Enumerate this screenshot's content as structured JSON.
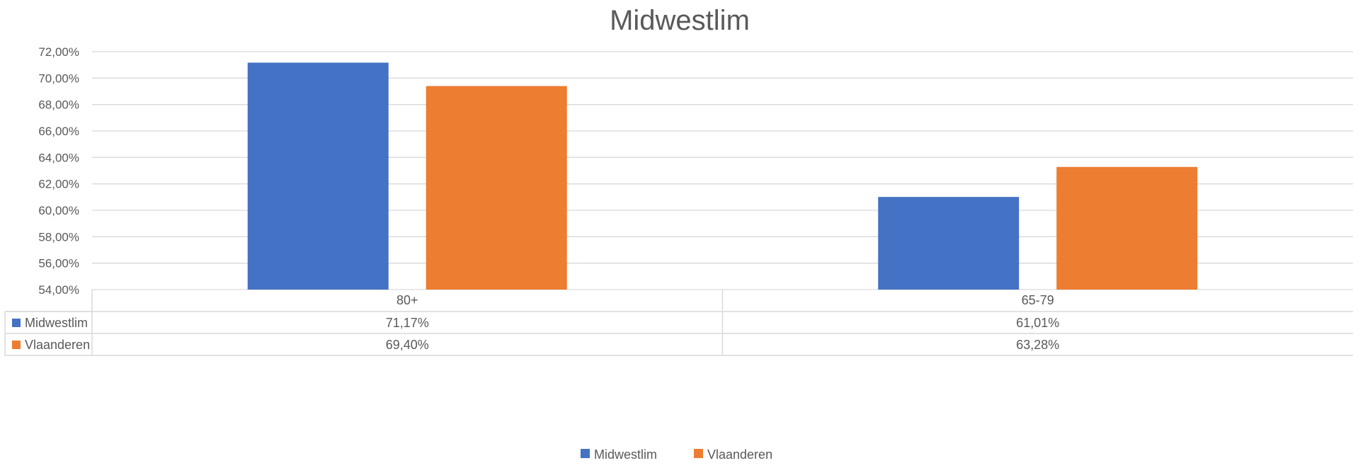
{
  "chart_data": {
    "type": "bar",
    "title": "Midwestlim",
    "categories": [
      "80+",
      "65-79"
    ],
    "series": [
      {
        "name": "Midwestlim",
        "color": "#4472C4",
        "values": [
          71.17,
          61.01
        ],
        "labels": [
          "71,17%",
          "61,01%"
        ]
      },
      {
        "name": "Vlaanderen",
        "color": "#ED7D31",
        "values": [
          69.4,
          63.28
        ],
        "labels": [
          "69,40%",
          "63,28%"
        ]
      }
    ],
    "ylim": [
      54,
      72
    ],
    "yticks": [
      54,
      56,
      58,
      60,
      62,
      64,
      66,
      68,
      70,
      72
    ],
    "ytick_labels": [
      "54,00%",
      "56,00%",
      "58,00%",
      "60,00%",
      "62,00%",
      "64,00%",
      "66,00%",
      "68,00%",
      "70,00%",
      "72,00%"
    ],
    "grid": true,
    "data_table": true,
    "legend": "bottom-center",
    "colors": {
      "gridline": "#D9D9D9",
      "text": "#595959",
      "table_border": "#D9D9D9"
    }
  }
}
